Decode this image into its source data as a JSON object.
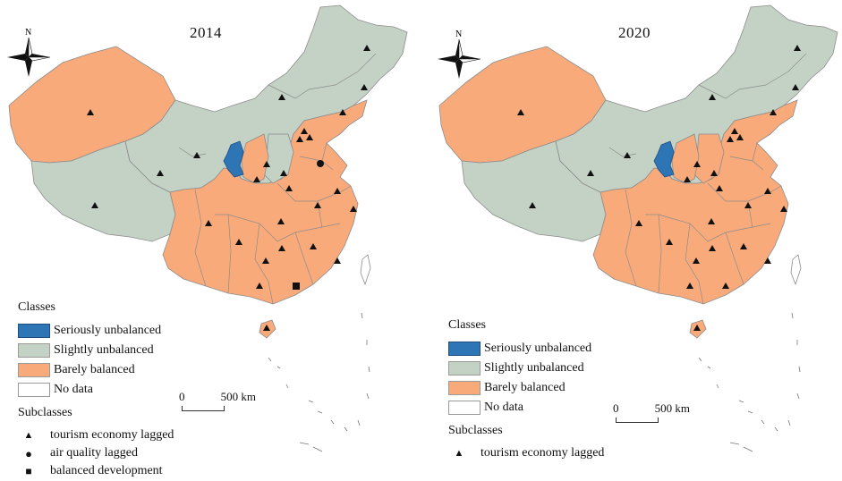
{
  "colors": {
    "seriously_unbalanced": "#2e75b6",
    "slightly_unbalanced": "#c4d2c6",
    "barely_balanced": "#f9aa7a",
    "no_data": "#ffffff",
    "border": "#8c8c8c"
  },
  "panels": [
    {
      "year": "2014",
      "north_label": "N",
      "scale": {
        "zero": "0",
        "distance": "500 km"
      },
      "classes_title": "Classes",
      "classes": [
        {
          "label": "Seriously unbalanced",
          "color_key": "seriously_unbalanced"
        },
        {
          "label": "Slightly unbalanced",
          "color_key": "slightly_unbalanced"
        },
        {
          "label": "Barely balanced",
          "color_key": "barely_balanced"
        },
        {
          "label": "No data",
          "color_key": "no_data"
        }
      ],
      "subclasses_title": "Subclasses",
      "subclasses": [
        {
          "label": "tourism economy lagged",
          "symbol": "triangle"
        },
        {
          "label": "air quality lagged",
          "symbol": "circle"
        },
        {
          "label": "balanced development",
          "symbol": "square"
        }
      ]
    },
    {
      "year": "2020",
      "north_label": "N",
      "scale": {
        "zero": "0",
        "distance": "500 km"
      },
      "classes_title": "Classes",
      "classes": [
        {
          "label": "Seriously unbalanced",
          "color_key": "seriously_unbalanced"
        },
        {
          "label": "Slightly unbalanced",
          "color_key": "slightly_unbalanced"
        },
        {
          "label": "Barely balanced",
          "color_key": "barely_balanced"
        },
        {
          "label": "No data",
          "color_key": "no_data"
        }
      ],
      "subclasses_title": "Subclasses",
      "subclasses": [
        {
          "label": "tourism economy lagged",
          "symbol": "triangle"
        }
      ]
    }
  ]
}
